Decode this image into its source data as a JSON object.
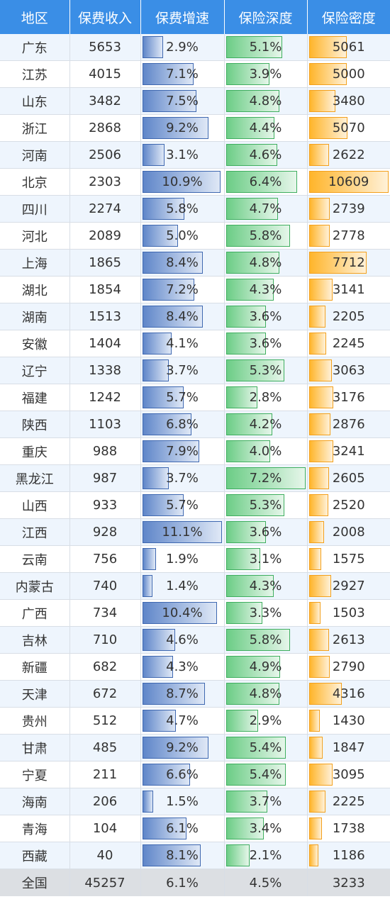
{
  "chart_data": {
    "type": "table",
    "columns": [
      "地区",
      "保费收入",
      "保费增速",
      "保险深度",
      "保险密度"
    ],
    "rows": [
      [
        "广东",
        "5653",
        "2.9%",
        "5.1%",
        "5061"
      ],
      [
        "江苏",
        "4015",
        "7.1%",
        "3.9%",
        "5000"
      ],
      [
        "山东",
        "3482",
        "7.5%",
        "4.8%",
        "3480"
      ],
      [
        "浙江",
        "2868",
        "9.2%",
        "4.4%",
        "5070"
      ],
      [
        "河南",
        "2506",
        "3.1%",
        "4.6%",
        "2622"
      ],
      [
        "北京",
        "2303",
        "10.9%",
        "6.4%",
        "10609"
      ],
      [
        "四川",
        "2274",
        "5.8%",
        "4.7%",
        "2739"
      ],
      [
        "河北",
        "2089",
        "5.0%",
        "5.8%",
        "2778"
      ],
      [
        "上海",
        "1865",
        "8.4%",
        "4.8%",
        "7712"
      ],
      [
        "湖北",
        "1854",
        "7.2%",
        "4.3%",
        "3141"
      ],
      [
        "湖南",
        "1513",
        "8.4%",
        "3.6%",
        "2205"
      ],
      [
        "安徽",
        "1404",
        "4.1%",
        "3.6%",
        "2245"
      ],
      [
        "辽宁",
        "1338",
        "3.7%",
        "5.3%",
        "3063"
      ],
      [
        "福建",
        "1242",
        "5.7%",
        "2.8%",
        "3176"
      ],
      [
        "陕西",
        "1103",
        "6.8%",
        "4.2%",
        "2876"
      ],
      [
        "重庆",
        "988",
        "7.9%",
        "4.0%",
        "3241"
      ],
      [
        "黑龙江",
        "987",
        "3.7%",
        "7.2%",
        "2605"
      ],
      [
        "山西",
        "933",
        "5.7%",
        "5.3%",
        "2520"
      ],
      [
        "江西",
        "928",
        "11.1%",
        "3.6%",
        "2008"
      ],
      [
        "云南",
        "756",
        "1.9%",
        "3.1%",
        "1575"
      ],
      [
        "内蒙古",
        "740",
        "1.4%",
        "4.3%",
        "2927"
      ],
      [
        "广西",
        "734",
        "10.4%",
        "3.3%",
        "1503"
      ],
      [
        "吉林",
        "710",
        "4.6%",
        "5.8%",
        "2613"
      ],
      [
        "新疆",
        "682",
        "4.3%",
        "4.9%",
        "2790"
      ],
      [
        "天津",
        "672",
        "8.7%",
        "4.8%",
        "4316"
      ],
      [
        "贵州",
        "512",
        "4.7%",
        "2.9%",
        "1430"
      ],
      [
        "甘肃",
        "485",
        "9.2%",
        "5.4%",
        "1847"
      ],
      [
        "宁夏",
        "211",
        "6.6%",
        "5.4%",
        "3095"
      ],
      [
        "海南",
        "206",
        "1.5%",
        "3.7%",
        "2225"
      ],
      [
        "青海",
        "104",
        "6.1%",
        "3.4%",
        "1738"
      ],
      [
        "西藏",
        "40",
        "8.1%",
        "2.1%",
        "1186"
      ]
    ],
    "total": [
      "全国",
      "45257",
      "6.1%",
      "4.5%",
      "3233"
    ],
    "data_bars": {
      "保费增速": {
        "min": 0,
        "max": 11.1,
        "color": "#5f86c9"
      },
      "保险深度": {
        "min": 0,
        "max": 7.2,
        "color": "#6ccd86"
      },
      "保险密度": {
        "min": 0,
        "max": 10609,
        "color": "#ffb52b"
      }
    },
    "header_color": "#3a8ee6"
  }
}
